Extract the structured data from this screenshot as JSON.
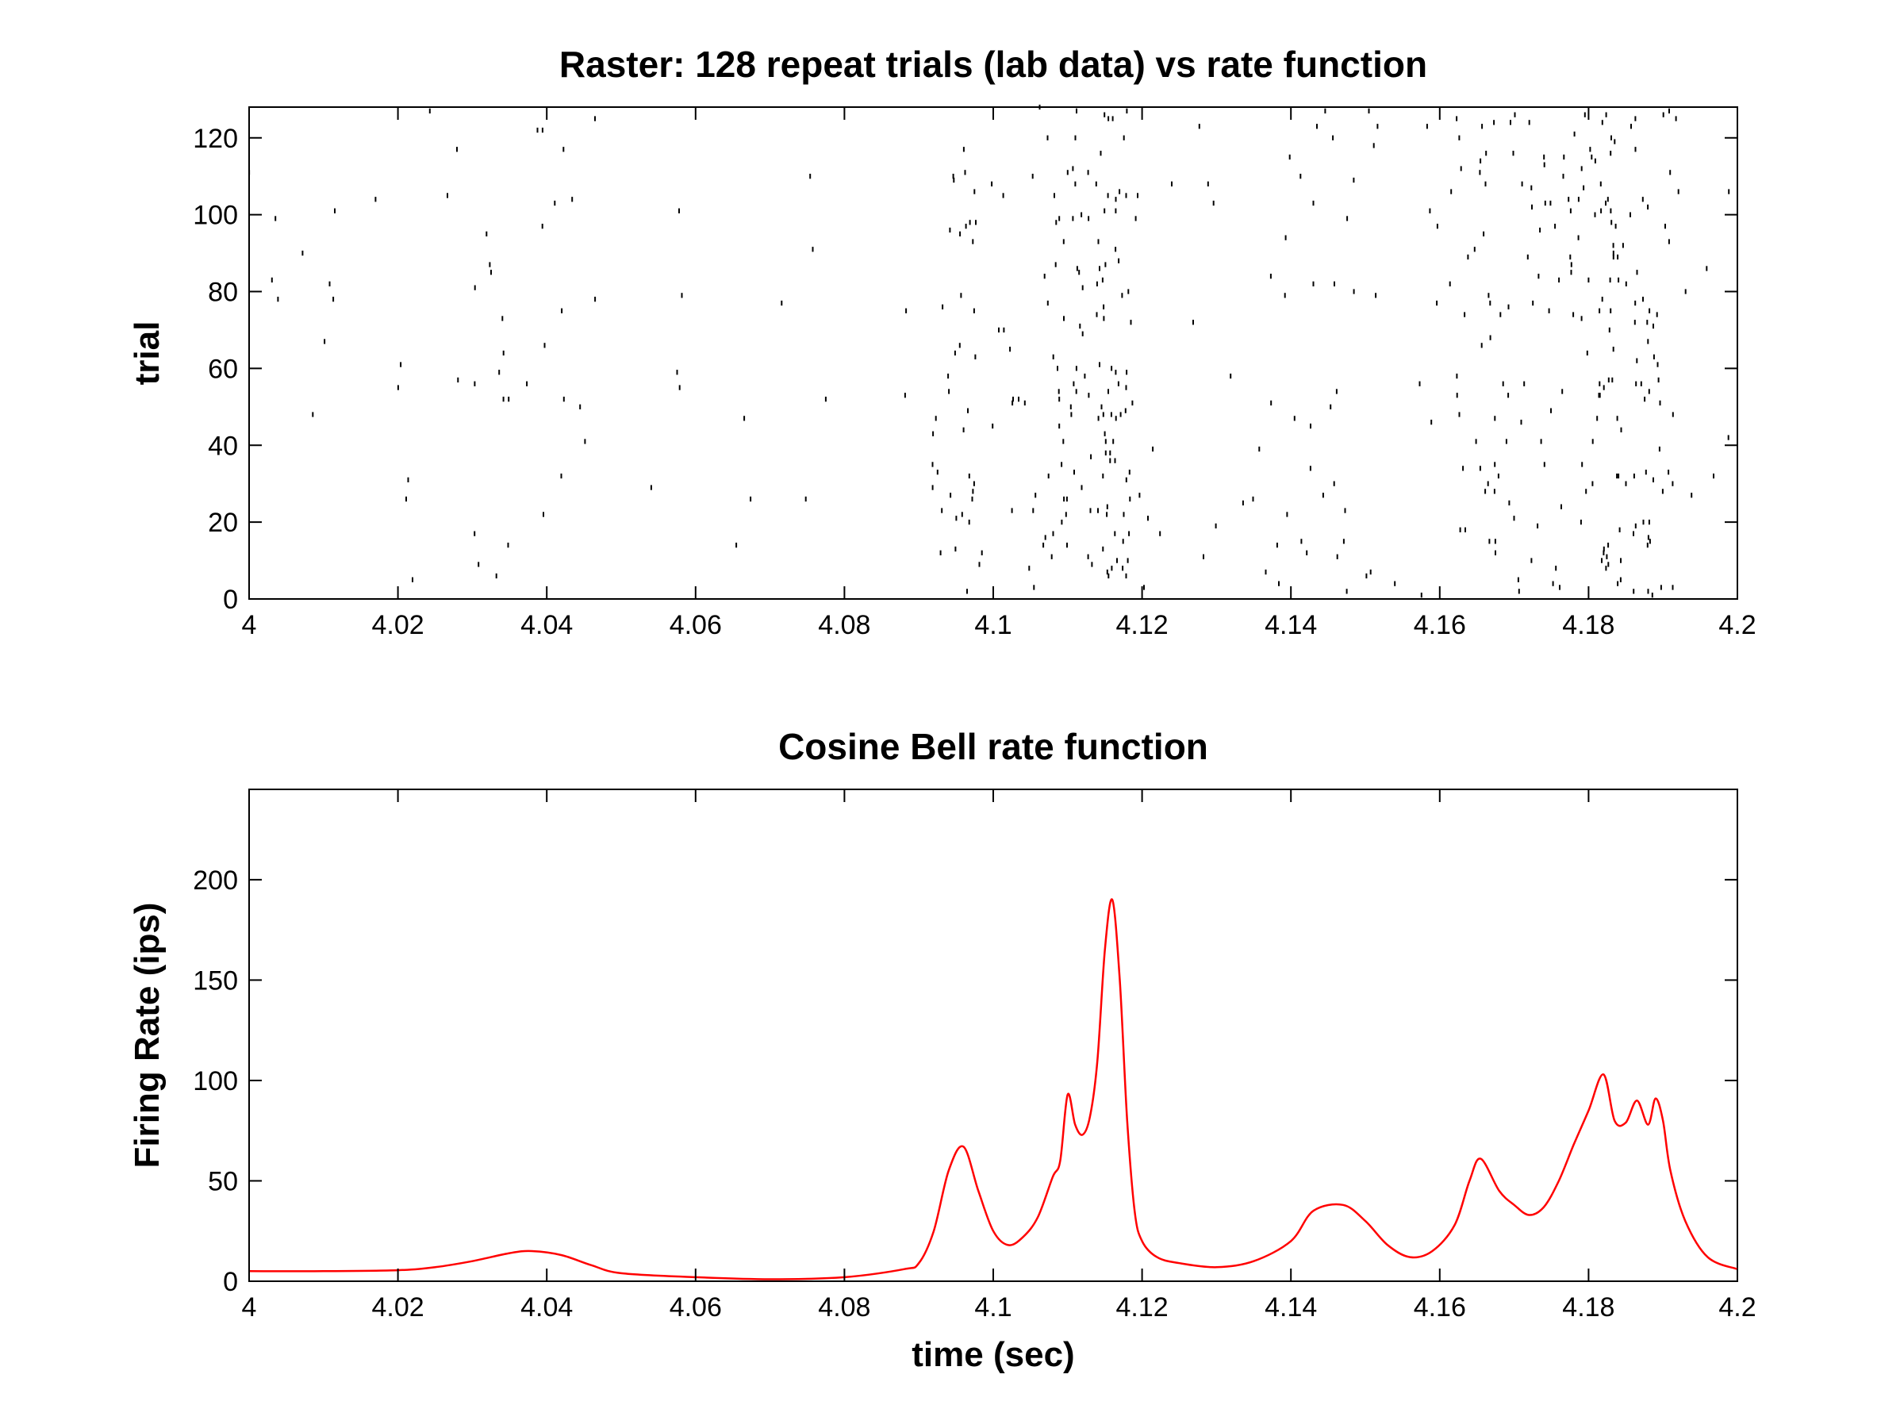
{
  "chart_data": [
    {
      "type": "raster",
      "title": "Raster: 128 repeat trials (lab data) vs rate function",
      "xlabel": "",
      "ylabel": "trial",
      "xlim": [
        4.0,
        4.2
      ],
      "ylim": [
        0,
        128
      ],
      "xticks": [
        4.0,
        4.02,
        4.04,
        4.06,
        4.08,
        4.1,
        4.12,
        4.14,
        4.16,
        4.18,
        4.2
      ],
      "xtick_labels": [
        "4",
        "4.02",
        "4.04",
        "4.06",
        "4.08",
        "4.1",
        "4.12",
        "4.14",
        "4.16",
        "4.18",
        "4.2"
      ],
      "yticks": [
        0,
        20,
        40,
        60,
        80,
        100,
        120
      ],
      "ytick_labels": [
        "0",
        "20",
        "40",
        "60",
        "80",
        "100",
        "120"
      ],
      "grid": false,
      "spike_color": "#000000",
      "trials": 128,
      "density_profile": [
        {
          "t": 4.0,
          "r": 5
        },
        {
          "t": 4.02,
          "r": 6
        },
        {
          "t": 4.03,
          "r": 9
        },
        {
          "t": 4.038,
          "r": 15
        },
        {
          "t": 4.045,
          "r": 10
        },
        {
          "t": 4.05,
          "r": 4
        },
        {
          "t": 4.07,
          "r": 2
        },
        {
          "t": 4.085,
          "r": 4
        },
        {
          "t": 4.09,
          "r": 8
        },
        {
          "t": 4.093,
          "r": 30
        },
        {
          "t": 4.096,
          "r": 67
        },
        {
          "t": 4.1,
          "r": 25
        },
        {
          "t": 4.102,
          "r": 18
        },
        {
          "t": 4.105,
          "r": 30
        },
        {
          "t": 4.108,
          "r": 55
        },
        {
          "t": 4.11,
          "r": 93
        },
        {
          "t": 4.112,
          "r": 73
        },
        {
          "t": 4.114,
          "r": 110
        },
        {
          "t": 4.116,
          "r": 190
        },
        {
          "t": 4.118,
          "r": 80
        },
        {
          "t": 4.12,
          "r": 20
        },
        {
          "t": 4.13,
          "r": 7
        },
        {
          "t": 4.138,
          "r": 18
        },
        {
          "t": 4.143,
          "r": 35
        },
        {
          "t": 4.147,
          "r": 38
        },
        {
          "t": 4.152,
          "r": 18
        },
        {
          "t": 4.156,
          "r": 12
        },
        {
          "t": 4.161,
          "r": 25
        },
        {
          "t": 4.165,
          "r": 61
        },
        {
          "t": 4.17,
          "r": 38
        },
        {
          "t": 4.173,
          "r": 33
        },
        {
          "t": 4.176,
          "r": 50
        },
        {
          "t": 4.179,
          "r": 75
        },
        {
          "t": 4.182,
          "r": 103
        },
        {
          "t": 4.184,
          "r": 79
        },
        {
          "t": 4.186,
          "r": 90
        },
        {
          "t": 4.188,
          "r": 78
        },
        {
          "t": 4.189,
          "r": 91
        },
        {
          "t": 4.192,
          "r": 35
        },
        {
          "t": 4.195,
          "r": 12
        },
        {
          "t": 4.2,
          "r": 6
        }
      ]
    },
    {
      "type": "line",
      "title": "Cosine Bell rate function",
      "xlabel": "time (sec)",
      "ylabel": "Firing Rate (ips)",
      "xlim": [
        4.0,
        4.2
      ],
      "ylim": [
        0,
        245
      ],
      "xticks": [
        4.0,
        4.02,
        4.04,
        4.06,
        4.08,
        4.1,
        4.12,
        4.14,
        4.16,
        4.18,
        4.2
      ],
      "xtick_labels": [
        "4",
        "4.02",
        "4.04",
        "4.06",
        "4.08",
        "4.1",
        "4.12",
        "4.14",
        "4.16",
        "4.18",
        "4.2"
      ],
      "yticks": [
        0,
        50,
        100,
        150,
        200
      ],
      "ytick_labels": [
        "0",
        "50",
        "100",
        "150",
        "200"
      ],
      "grid": false,
      "line_color": "#ff0000",
      "series": [
        {
          "x": [
            4.0,
            4.01,
            4.02,
            4.025,
            4.03,
            4.035,
            4.038,
            4.042,
            4.046,
            4.05,
            4.06,
            4.07,
            4.08,
            4.088,
            4.09,
            4.092,
            4.094,
            4.096,
            4.098,
            4.1,
            4.102,
            4.104,
            4.106,
            4.108,
            4.109,
            4.11,
            4.111,
            4.112,
            4.113,
            4.114,
            4.115,
            4.116,
            4.117,
            4.118,
            4.119,
            4.12,
            4.122,
            4.125,
            4.13,
            4.135,
            4.14,
            4.143,
            4.147,
            4.15,
            4.153,
            4.156,
            4.159,
            4.162,
            4.164,
            4.1655,
            4.168,
            4.17,
            4.172,
            4.174,
            4.176,
            4.178,
            4.18,
            4.182,
            4.1835,
            4.185,
            4.1865,
            4.188,
            4.189,
            4.19,
            4.191,
            4.193,
            4.196,
            4.2
          ],
          "y": [
            5,
            5,
            5.5,
            7,
            10,
            14,
            15,
            13,
            8,
            4,
            2,
            1,
            2,
            6,
            9,
            25,
            55,
            67,
            45,
            25,
            18,
            22,
            32,
            52,
            60,
            93,
            78,
            73,
            82,
            110,
            165,
            190,
            150,
            80,
            35,
            20,
            12,
            9,
            7,
            10,
            20,
            35,
            38,
            30,
            18,
            12,
            15,
            28,
            50,
            61,
            45,
            38,
            33,
            37,
            50,
            68,
            85,
            103,
            80,
            79,
            90,
            78,
            91,
            80,
            55,
            30,
            12,
            6
          ]
        }
      ]
    }
  ]
}
